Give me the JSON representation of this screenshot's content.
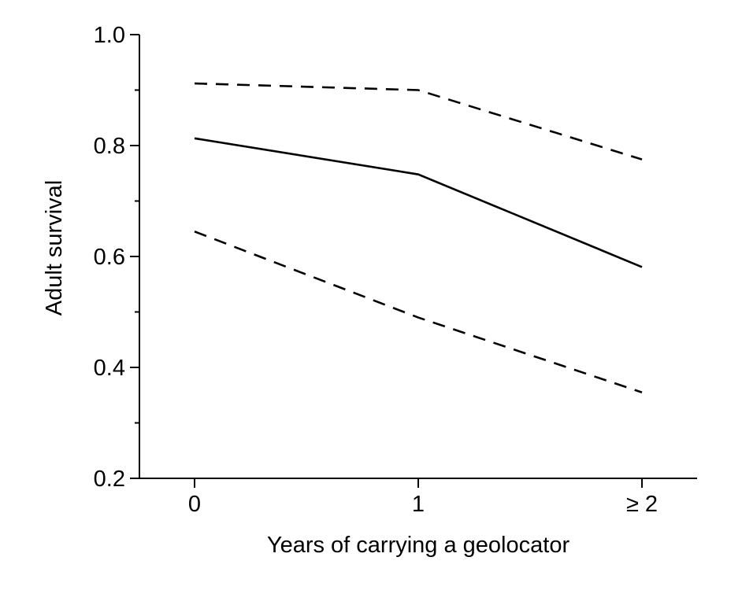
{
  "chart_data": {
    "type": "line",
    "title": "",
    "xlabel": "Years of carrying a geolocator",
    "ylabel": "Adult survival",
    "categories": [
      "0",
      "1",
      "≥ 2"
    ],
    "ylim": [
      0.2,
      1.0
    ],
    "yticks": [
      "0.2",
      "0.4",
      "0.6",
      "0.8",
      "1.0"
    ],
    "yticks_values": [
      0.2,
      0.4,
      0.6,
      0.8,
      1.0
    ],
    "y_minor_step": 0.1,
    "grid": false,
    "legend": "none",
    "series": [
      {
        "role": "estimate",
        "style": "solid",
        "color": "#000000",
        "values": [
          0.813,
          0.748,
          0.581
        ]
      },
      {
        "role": "upper",
        "style": "dashed",
        "color": "#000000",
        "values": [
          0.912,
          0.9,
          0.775
        ]
      },
      {
        "role": "lower",
        "style": "dashed",
        "color": "#000000",
        "values": [
          0.645,
          0.49,
          0.355
        ]
      }
    ]
  }
}
